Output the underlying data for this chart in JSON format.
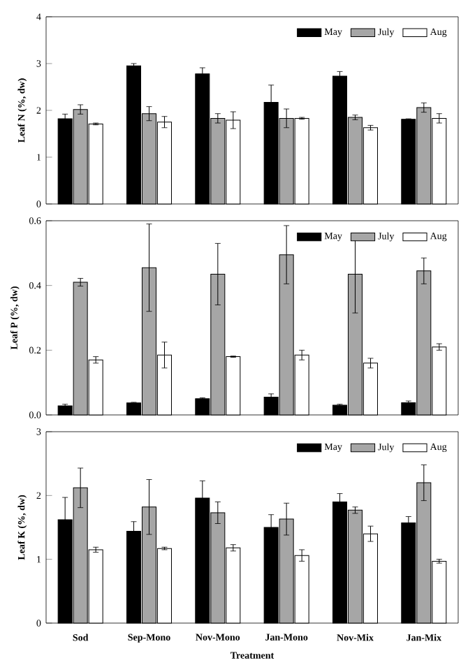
{
  "chart_data": [
    {
      "type": "bar",
      "ylabel": "Leaf N (%, dw)",
      "categories": [
        null,
        null,
        null,
        null,
        null,
        null
      ],
      "ylim": [
        0,
        4
      ],
      "yticks": [
        0,
        1,
        2,
        3,
        4
      ],
      "legend": "top right",
      "tick_labels": "y",
      "series": [
        {
          "name": "May",
          "color": "#000000",
          "values": [
            1.82,
            2.95,
            2.78,
            2.17,
            2.73,
            1.81
          ],
          "errors": [
            0.1,
            0.05,
            0.13,
            0.37,
            0.1,
            0.01
          ]
        },
        {
          "name": "July",
          "color": "#a6a6a6",
          "values": [
            2.02,
            1.93,
            1.83,
            1.83,
            1.85,
            2.06
          ],
          "errors": [
            0.1,
            0.15,
            0.1,
            0.2,
            0.05,
            0.1
          ]
        },
        {
          "name": "Aug",
          "color": "#ffffff",
          "values": [
            1.71,
            1.75,
            1.79,
            1.83,
            1.63,
            1.83
          ],
          "errors": [
            0.02,
            0.12,
            0.18,
            0.02,
            0.05,
            0.1
          ]
        }
      ]
    },
    {
      "type": "bar",
      "ylabel": "Leaf P (%, dw)",
      "categories": [
        null,
        null,
        null,
        null,
        null,
        null
      ],
      "ylim": [
        0,
        0.6
      ],
      "yticks": [
        {
          "value": 0,
          "label": "0.0"
        },
        {
          "value": 0.2,
          "label": "0.2"
        },
        {
          "value": 0.4,
          "label": "0.4"
        },
        {
          "value": 0.6,
          "label": "0.6"
        }
      ],
      "legend": "top right",
      "tick_labels": "y",
      "series": [
        {
          "name": "May",
          "color": "#000000",
          "values": [
            0.028,
            0.037,
            0.05,
            0.055,
            0.03,
            0.038
          ],
          "errors": [
            0.005,
            0.002,
            0.003,
            0.01,
            0.003,
            0.005
          ]
        },
        {
          "name": "July",
          "color": "#a6a6a6",
          "values": [
            0.41,
            0.455,
            0.435,
            0.495,
            0.435,
            0.445
          ],
          "errors": [
            0.012,
            0.135,
            0.095,
            0.09,
            0.12,
            0.04
          ]
        },
        {
          "name": "Aug",
          "color": "#ffffff",
          "values": [
            0.17,
            0.185,
            0.18,
            0.185,
            0.16,
            0.21
          ],
          "errors": [
            0.01,
            0.04,
            0.002,
            0.015,
            0.015,
            0.01
          ]
        }
      ]
    },
    {
      "type": "bar",
      "ylabel": "Leaf K (%, dw)",
      "xlabel": "Treatment",
      "categories": [
        "Sod",
        "Sep-Mono",
        "Nov-Mono",
        "Jan-Mono",
        "Nov-Mix",
        "Jan-Mix"
      ],
      "ylim": [
        0,
        3
      ],
      "yticks": [
        0,
        1,
        2,
        3
      ],
      "legend": "top right",
      "series": [
        {
          "name": "May",
          "color": "#000000",
          "values": [
            1.62,
            1.44,
            1.96,
            1.5,
            1.9,
            1.57
          ],
          "errors": [
            0.35,
            0.15,
            0.27,
            0.2,
            0.13,
            0.1
          ]
        },
        {
          "name": "July",
          "color": "#a6a6a6",
          "values": [
            2.12,
            1.82,
            1.73,
            1.63,
            1.77,
            2.2
          ],
          "errors": [
            0.31,
            0.43,
            0.17,
            0.25,
            0.05,
            0.28
          ]
        },
        {
          "name": "Aug",
          "color": "#ffffff",
          "values": [
            1.15,
            1.17,
            1.18,
            1.06,
            1.4,
            0.97
          ],
          "errors": [
            0.04,
            0.02,
            0.05,
            0.09,
            0.12,
            0.03
          ]
        }
      ]
    }
  ]
}
